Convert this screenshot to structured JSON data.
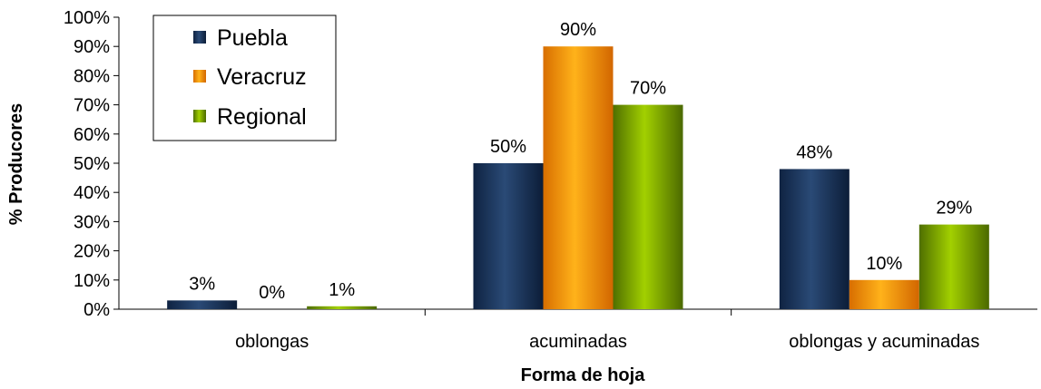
{
  "chart_data": {
    "type": "bar",
    "title": "",
    "xlabel": "Forma de hoja",
    "ylabel": "% Producores",
    "categories": [
      "oblongas",
      "acuminadas",
      "oblongas y acuminadas"
    ],
    "series": [
      {
        "name": "Puebla",
        "values": [
          3,
          50,
          48
        ],
        "labels": [
          "3%",
          "50%",
          "48%"
        ],
        "color": "#1a3358"
      },
      {
        "name": "Veracruz",
        "values": [
          0,
          90,
          10
        ],
        "labels": [
          "0%",
          "90%",
          "10%"
        ],
        "color": "#ff9a00"
      },
      {
        "name": "Regional",
        "values": [
          1,
          70,
          29
        ],
        "labels": [
          "1%",
          "70%",
          "29%"
        ],
        "color": "#8fc000"
      }
    ],
    "ylim": [
      0,
      100
    ],
    "yticks": [
      "0%",
      "10%",
      "20%",
      "30%",
      "40%",
      "50%",
      "60%",
      "70%",
      "80%",
      "90%",
      "100%"
    ],
    "grid": false,
    "legend_position": "top-left"
  }
}
